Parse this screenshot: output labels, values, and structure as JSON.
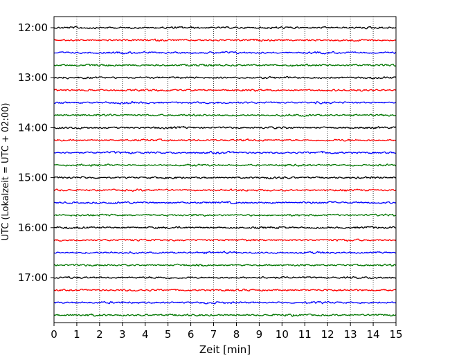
{
  "chart_data": {
    "type": "line",
    "title": "",
    "xlabel": "Zeit  [min]",
    "ylabel": "UTC (Lokalzeit = UTC + 02:00)",
    "xlim": [
      0,
      15
    ],
    "x_ticks": [
      "0",
      "1",
      "2",
      "3",
      "4",
      "5",
      "6",
      "7",
      "8",
      "9",
      "10",
      "11",
      "12",
      "13",
      "14",
      "15"
    ],
    "y_ticks": [
      "12:00",
      "13:00",
      "14:00",
      "15:00",
      "16:00",
      "17:00"
    ],
    "trace_interval_min": 15,
    "start_time_utc": "12:00",
    "end_time_utc": "17:45",
    "grid": {
      "x": true,
      "y": false,
      "style": "dotted"
    },
    "trace_colors": [
      "#000000",
      "#ff0000",
      "#0000ff",
      "#007700"
    ],
    "series": [
      {
        "start": "12:00",
        "color": "#000000"
      },
      {
        "start": "12:15",
        "color": "#ff0000"
      },
      {
        "start": "12:30",
        "color": "#0000ff"
      },
      {
        "start": "12:45",
        "color": "#007700"
      },
      {
        "start": "13:00",
        "color": "#000000"
      },
      {
        "start": "13:15",
        "color": "#ff0000"
      },
      {
        "start": "13:30",
        "color": "#0000ff"
      },
      {
        "start": "13:45",
        "color": "#007700"
      },
      {
        "start": "14:00",
        "color": "#000000"
      },
      {
        "start": "14:15",
        "color": "#ff0000"
      },
      {
        "start": "14:30",
        "color": "#0000ff"
      },
      {
        "start": "14:45",
        "color": "#007700"
      },
      {
        "start": "15:00",
        "color": "#000000"
      },
      {
        "start": "15:15",
        "color": "#ff0000"
      },
      {
        "start": "15:30",
        "color": "#0000ff"
      },
      {
        "start": "15:45",
        "color": "#007700"
      },
      {
        "start": "16:00",
        "color": "#000000"
      },
      {
        "start": "16:15",
        "color": "#ff0000"
      },
      {
        "start": "16:30",
        "color": "#0000ff"
      },
      {
        "start": "16:45",
        "color": "#007700"
      },
      {
        "start": "17:00",
        "color": "#000000"
      },
      {
        "start": "17:15",
        "color": "#ff0000"
      },
      {
        "start": "17:30",
        "color": "#0000ff"
      },
      {
        "start": "17:45",
        "color": "#007700"
      }
    ]
  }
}
